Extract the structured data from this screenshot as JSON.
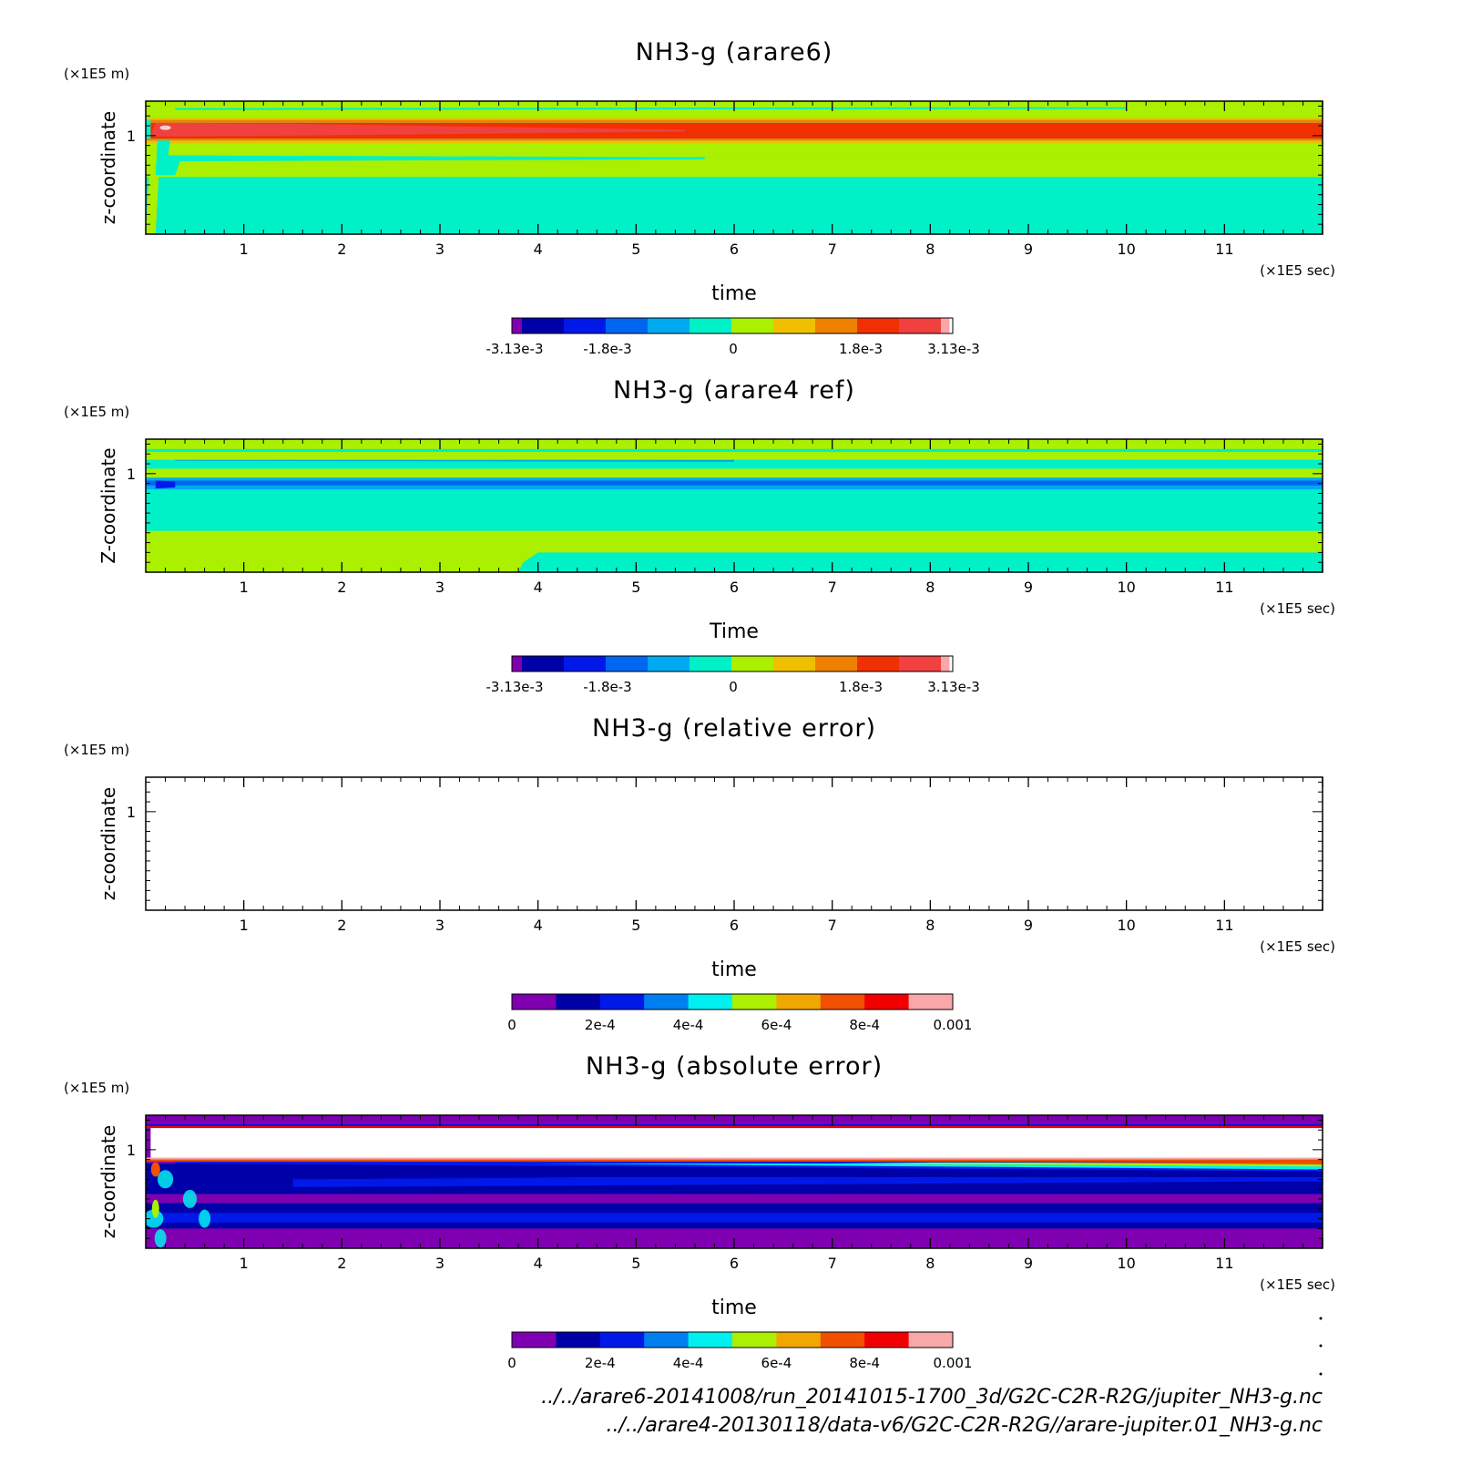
{
  "colorscale_diverging": {
    "colors": [
      "#7f00b0",
      "#0000a8",
      "#0019e8",
      "#0066f0",
      "#00aaf0",
      "#00f0c8",
      "#aaf000",
      "#f0c000",
      "#f08000",
      "#f03000",
      "#f04040",
      "#f8a8a8"
    ],
    "tick_labels": [
      "-3.13e-3",
      "-1.8e-3",
      "0",
      "1.8e-3",
      "3.13e-3"
    ]
  },
  "colorscale_error": {
    "colors": [
      "#7f00b0",
      "#0000a8",
      "#0019e8",
      "#0080f0",
      "#00f0f0",
      "#aaf000",
      "#f0a800",
      "#f05000",
      "#f00000",
      "#f8a8a8"
    ],
    "tick_labels": [
      "0",
      "2e-4",
      "4e-4",
      "6e-4",
      "8e-4",
      "0.001"
    ]
  },
  "chart_data": [
    {
      "type": "heatmap",
      "title": "NH3-g (arare6)",
      "xlabel": "time",
      "ylabel": "z-coordinate",
      "x_unit": "(×1E5 sec)",
      "y_unit": "(×1E5 m)",
      "xlim": [
        0,
        12
      ],
      "ylim": [
        0,
        1.35
      ],
      "x_ticks": [
        "1",
        "2",
        "3",
        "4",
        "5",
        "6",
        "7",
        "8",
        "9",
        "10",
        "11"
      ],
      "y_ticks": [
        "1"
      ],
      "colorbar": "diverging",
      "bands": [
        {
          "z0": 0.0,
          "z1": 0.58,
          "level": "0"
        },
        {
          "z0": 0.58,
          "z1": 0.78,
          "level": "0 to 6e-4"
        },
        {
          "z0": 0.78,
          "z1": 0.92,
          "level": "0"
        },
        {
          "z0": 0.92,
          "z1": 1.15,
          "level": "2.4e-3"
        },
        {
          "z0": 1.15,
          "z1": 1.35,
          "level": "0 to 6e-4"
        }
      ]
    },
    {
      "type": "heatmap",
      "title": "NH3-g (arare4 ref)",
      "xlabel": "Time",
      "ylabel": "Z-coordinate",
      "x_unit": "(×1E5 sec)",
      "y_unit": "(×1E5 m)",
      "xlim": [
        0,
        12
      ],
      "ylim": [
        0,
        1.35
      ],
      "x_ticks": [
        "1",
        "2",
        "3",
        "4",
        "5",
        "6",
        "7",
        "8",
        "9",
        "10",
        "11"
      ],
      "y_ticks": [
        "1"
      ],
      "colorbar": "diverging",
      "bands": [
        {
          "z0": 0.0,
          "z1": 0.42,
          "level": "0 to 6e-4"
        },
        {
          "z0": 0.42,
          "z1": 0.84,
          "level": "0"
        },
        {
          "z0": 0.84,
          "z1": 0.95,
          "level": "-9e-4"
        },
        {
          "z0": 0.95,
          "z1": 1.35,
          "level": "0 to 6e-4"
        }
      ]
    },
    {
      "type": "heatmap",
      "title": "NH3-g (relative error)",
      "xlabel": "time",
      "ylabel": "z-coordinate",
      "x_unit": "(×1E5 sec)",
      "y_unit": "(×1E5 m)",
      "xlim": [
        0,
        12
      ],
      "ylim": [
        0,
        1.35
      ],
      "x_ticks": [
        "1",
        "2",
        "3",
        "4",
        "5",
        "6",
        "7",
        "8",
        "9",
        "10",
        "11"
      ],
      "y_ticks": [
        "1"
      ],
      "colorbar": "error",
      "bands": []
    },
    {
      "type": "heatmap",
      "title": "NH3-g (absolute error)",
      "xlabel": "time",
      "ylabel": "z-coordinate",
      "x_unit": "(×1E5 sec)",
      "y_unit": "(×1E5 m)",
      "xlim": [
        0,
        12
      ],
      "ylim": [
        0,
        1.35
      ],
      "x_ticks": [
        "1",
        "2",
        "3",
        "4",
        "5",
        "6",
        "7",
        "8",
        "9",
        "10",
        "11"
      ],
      "y_ticks": [
        "1"
      ],
      "colorbar": "error",
      "bands": [
        {
          "z0": 0.0,
          "z1": 0.2,
          "level": "0"
        },
        {
          "z0": 0.2,
          "z1": 0.46,
          "level": "1e-4"
        },
        {
          "z0": 0.46,
          "z1": 0.55,
          "level": "0"
        },
        {
          "z0": 0.55,
          "z1": 0.72,
          "level": "1e-4 to 2e-4"
        },
        {
          "z0": 0.72,
          "z1": 0.9,
          "level": "1e-4 to 9e-4"
        },
        {
          "z0": 0.9,
          "z1": 1.22,
          "level": "above 0.001"
        },
        {
          "z0": 1.22,
          "z1": 1.35,
          "level": "0"
        }
      ]
    }
  ],
  "footer": {
    "file_lines": [
      "../../arare6-20141008/run_20141015-1700_3d/G2C-C2R-R2G/jupiter_NH3-g.nc",
      "../../arare4-20130118/data-v6/G2C-C2R-R2G//arare-jupiter.01_NH3-g.nc"
    ]
  }
}
